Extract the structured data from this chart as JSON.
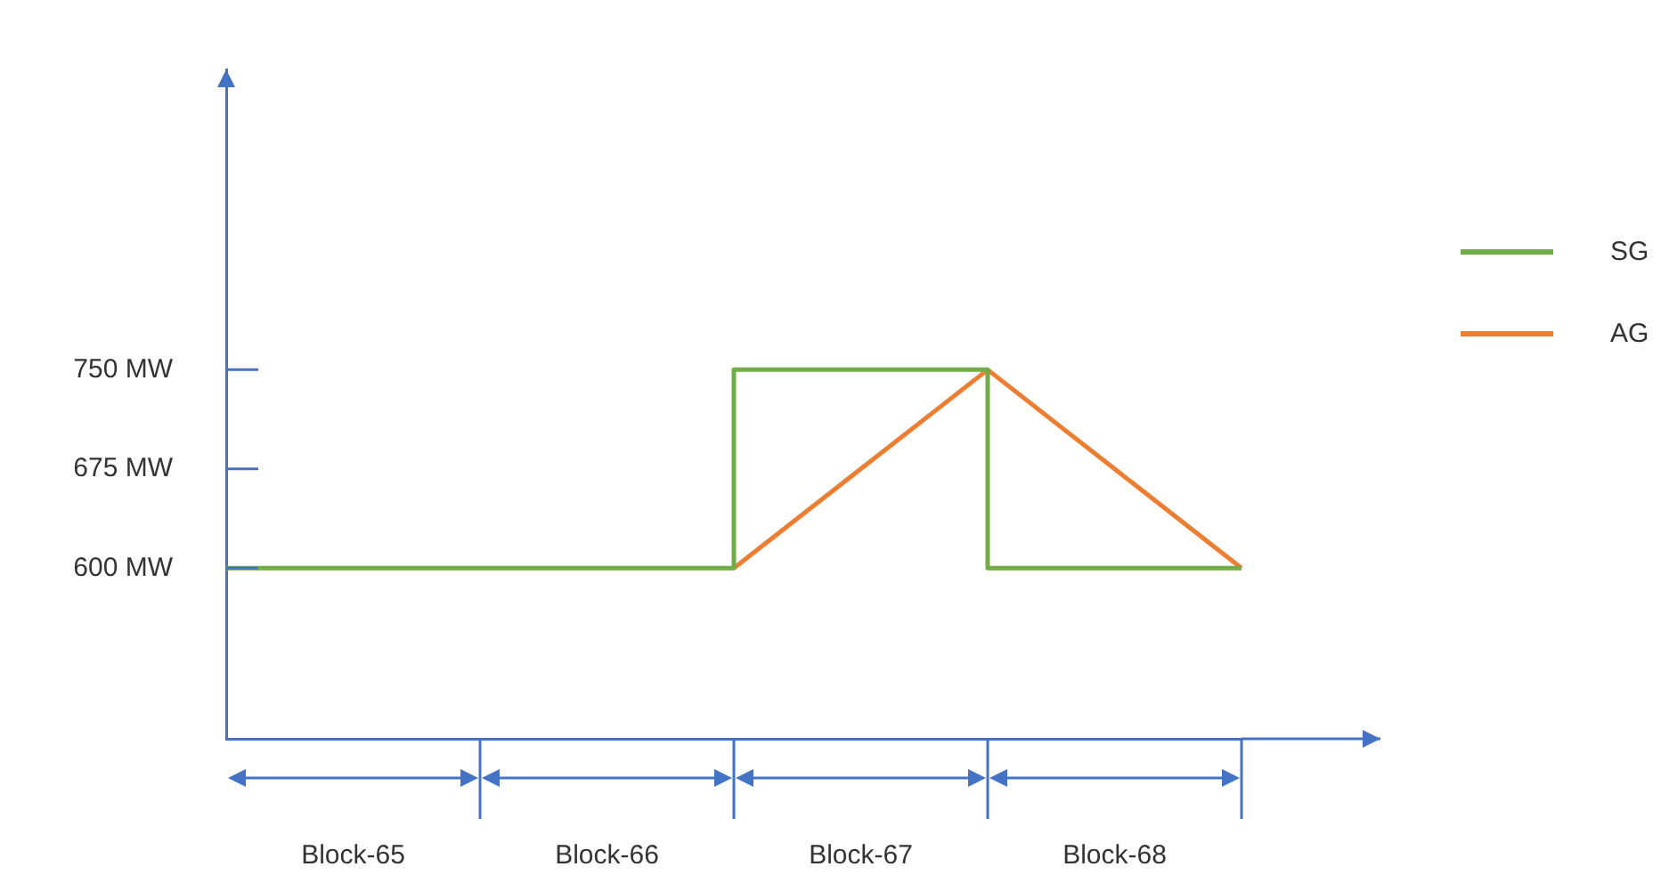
{
  "chart_data": {
    "type": "line",
    "categories": [
      null,
      "Block-65",
      null,
      "Block-66",
      null,
      "Block-67",
      null,
      "Block-68",
      null
    ],
    "series": [
      {
        "name": "SG",
        "color": "#70ad47",
        "type": "step",
        "values": [
          600,
          600,
          600,
          600,
          750,
          750,
          600,
          600,
          600
        ]
      },
      {
        "name": "AG",
        "color": "#ed7d31",
        "values": [
          null,
          null,
          null,
          null,
          600,
          675,
          750,
          675,
          600
        ]
      }
    ],
    "ylim": [
      471,
      977
    ],
    "yticks": [
      {
        "value": 600,
        "label": "600 MW"
      },
      {
        "value": 675,
        "label": "675 MW"
      },
      {
        "value": 750,
        "label": "750 MW"
      }
    ],
    "grid": false,
    "legend": "right",
    "marker": "none",
    "line_style": "solid"
  }
}
